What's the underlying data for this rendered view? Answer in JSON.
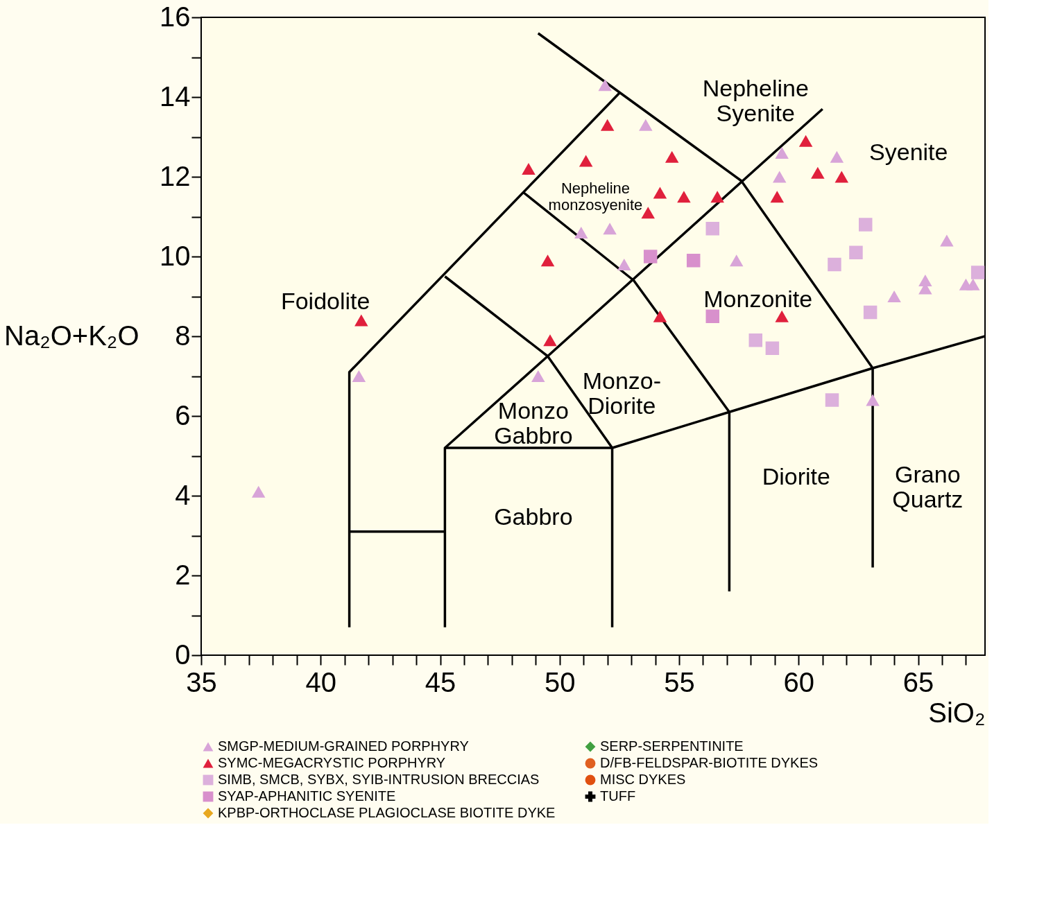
{
  "chart_data": {
    "type": "scatter",
    "xlabel": "SiO₂",
    "ylabel": "Na₂O+K₂O",
    "xlim": [
      35,
      67.8
    ],
    "ylim": [
      0,
      16
    ],
    "xticks": [
      35,
      {
        "value": 36,
        "label": null
      },
      {
        "value": 37,
        "label": null
      },
      {
        "value": 38,
        "label": null
      },
      {
        "value": 39,
        "label": null
      },
      40,
      {
        "value": 41,
        "label": null
      },
      {
        "value": 42,
        "label": null
      },
      {
        "value": 43,
        "label": null
      },
      {
        "value": 44,
        "label": null
      },
      45,
      {
        "value": 46,
        "label": null
      },
      {
        "value": 47,
        "label": null
      },
      {
        "value": 48,
        "label": null
      },
      {
        "value": 49,
        "label": null
      },
      50,
      {
        "value": 51,
        "label": null
      },
      {
        "value": 52,
        "label": null
      },
      {
        "value": 53,
        "label": null
      },
      {
        "value": 54,
        "label": null
      },
      55,
      {
        "value": 56,
        "label": null
      },
      {
        "value": 57,
        "label": null
      },
      {
        "value": 58,
        "label": null
      },
      {
        "value": 59,
        "label": null
      },
      60,
      {
        "value": 61,
        "label": null
      },
      {
        "value": 62,
        "label": null
      },
      {
        "value": 63,
        "label": null
      },
      {
        "value": 64,
        "label": null
      },
      65,
      {
        "value": 66,
        "label": null
      },
      {
        "value": 67,
        "label": null
      }
    ],
    "yticks": [
      0,
      {
        "value": 1,
        "label": null
      },
      2,
      {
        "value": 3,
        "label": null
      },
      4,
      {
        "value": 5,
        "label": null
      },
      6,
      {
        "value": 7,
        "label": null
      },
      8,
      {
        "value": 9,
        "label": null
      },
      10,
      {
        "value": 11,
        "label": null
      },
      12,
      {
        "value": 13,
        "label": null
      },
      14,
      {
        "value": 15,
        "label": null
      },
      16
    ],
    "legend": "bottom",
    "series": [
      {
        "name": "SMGP-MEDIUM-GRAINED PORPHYRY",
        "color": "#d8a4d8",
        "marker": "triangle",
        "x": [
          51.9,
          53.6,
          59.3,
          61.6,
          59.2,
          50.9,
          52.1,
          52.7,
          57.4,
          66.2,
          65.3,
          65.3,
          67.0,
          67.3,
          64.0,
          63.1,
          49.1,
          41.6,
          37.4
        ],
        "values": [
          14.3,
          13.3,
          12.6,
          12.5,
          12.0,
          10.6,
          10.7,
          9.8,
          9.9,
          10.4,
          9.4,
          9.2,
          9.3,
          9.3,
          9.0,
          6.4,
          7.0,
          7.0,
          4.1
        ]
      },
      {
        "name": "SYMC-MEGACRYSTIC PORPHYRY",
        "color": "#e0203c",
        "marker": "triangle",
        "x": [
          52.0,
          48.7,
          51.1,
          54.7,
          54.2,
          55.2,
          56.6,
          53.7,
          59.1,
          60.3,
          60.8,
          61.8,
          49.5,
          41.7,
          49.6,
          54.2,
          59.3
        ],
        "values": [
          13.3,
          12.2,
          12.4,
          12.5,
          11.6,
          11.5,
          11.5,
          11.1,
          11.5,
          12.9,
          12.1,
          12.0,
          9.9,
          8.4,
          7.9,
          8.5,
          8.5
        ]
      },
      {
        "name": "SIMB, SMCB, SYBX, SYIB-INTRUSION BRECCIAS",
        "color": "#dcb0dc",
        "marker": "square",
        "x": [
          56.4,
          62.8,
          61.5,
          62.4,
          67.5,
          63.0,
          58.2,
          58.9,
          61.4
        ],
        "values": [
          10.7,
          10.8,
          9.8,
          10.1,
          9.6,
          8.6,
          7.9,
          7.7,
          6.4
        ]
      },
      {
        "name": "SYAP-APHANITIC SYENITE",
        "color": "#d890cc",
        "marker": "square",
        "x": [
          53.8,
          55.6,
          56.4
        ],
        "values": [
          10.0,
          9.9,
          8.5
        ]
      },
      {
        "name": "KPBP-ORTHOCLASE PLAGIOCLASE BIOTITE DYKE",
        "color": "#e8a820",
        "marker": "diamond"
      },
      {
        "name": "SERP-SERPENTINITE",
        "color": "#40a040",
        "marker": "diamond"
      },
      {
        "name": "D/FB-FELDSPAR-BIOTITE DYKES",
        "color": "#e06020",
        "marker": "circle"
      },
      {
        "name": "MISC DYKES",
        "color": "#e05010",
        "marker": "circle"
      },
      {
        "name": "TUFF",
        "color": "#000000",
        "marker": "cross"
      },
      {
        "type": "line",
        "color": "#000000",
        "x": [
          41.2,
          41.2,
          52.5
        ],
        "values": [
          0.7,
          7.1,
          14.1
        ]
      },
      {
        "type": "line",
        "color": "#000000",
        "x": [
          49.1,
          57.6,
          63.1,
          63.1
        ],
        "values": [
          15.6,
          11.9,
          7.2,
          2.2
        ]
      },
      {
        "type": "line",
        "color": "#000000",
        "x": [
          48.5,
          53.1,
          57.1,
          57.1
        ],
        "values": [
          11.6,
          9.4,
          6.1,
          1.6
        ]
      },
      {
        "type": "line",
        "color": "#000000",
        "x": [
          61.0,
          49.5,
          45.2,
          45.2
        ],
        "values": [
          13.7,
          7.5,
          5.2,
          0.7
        ]
      },
      {
        "type": "line",
        "color": "#000000",
        "x": [
          45.2,
          49.5,
          52.2,
          52.2
        ],
        "values": [
          9.5,
          7.5,
          5.2,
          0.7
        ]
      },
      {
        "type": "line",
        "color": "#000000",
        "x": [
          45.2,
          52.2,
          57.1,
          63.1,
          67.8
        ],
        "values": [
          5.2,
          5.2,
          6.1,
          7.2,
          8.0
        ]
      },
      {
        "type": "line",
        "color": "#000000",
        "x": [
          41.2,
          45.2
        ],
        "values": [
          3.1,
          3.1
        ]
      }
    ],
    "annotations": [
      "Nepheline\nSyenite",
      "Syenite",
      "Nepheline\nmonzosyenite",
      "Foidolite",
      "Monzonite",
      "Monzo-\nDiorite",
      "Monzo\nGabbro",
      "Gabbro",
      "Diorite",
      "Grano\nQuartz"
    ]
  }
}
